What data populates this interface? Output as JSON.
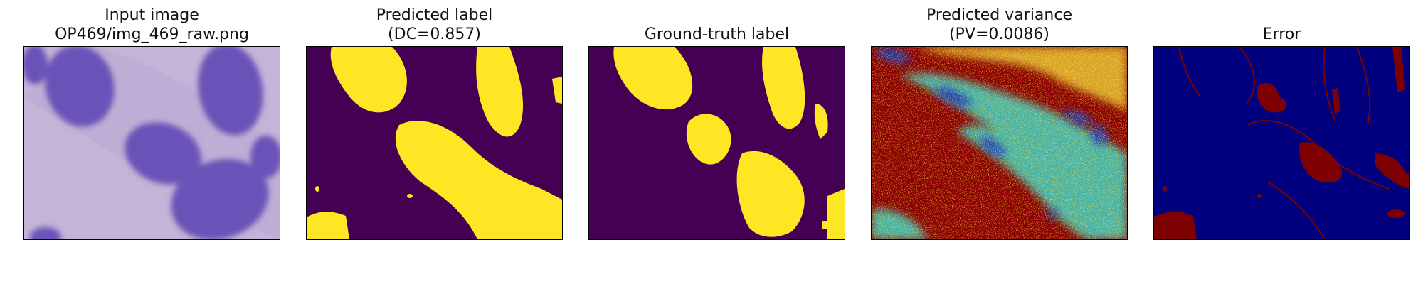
{
  "figure": {
    "panels": [
      {
        "title": "Input image\nOP469/img_469_raw.png",
        "kind": "input-image"
      },
      {
        "title": "Predicted label\n(DC=0.857)",
        "kind": "predicted-label"
      },
      {
        "title": "Ground-truth label",
        "kind": "ground-truth-label"
      },
      {
        "title": "Predicted variance\n(PV=0.0086)",
        "kind": "predicted-variance"
      },
      {
        "title": "Error",
        "kind": "error-map"
      }
    ]
  },
  "colors": {
    "input_bg": "#c3b4d8",
    "input_nucleus": "#6a52b8",
    "label_bg": "#440154",
    "label_fg": "#fde725",
    "variance_base": "#8b0000",
    "variance_mid": "#3fd3c2",
    "variance_low": "#1e3fbf",
    "error_bg": "#00007f",
    "error_fg": "#7f0000"
  }
}
